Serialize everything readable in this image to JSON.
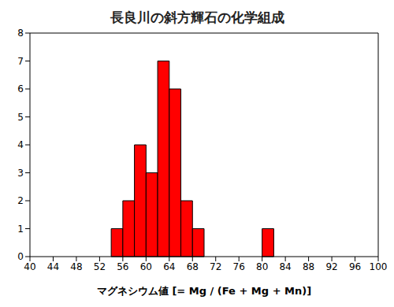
{
  "chart_data": {
    "type": "histogram",
    "title": "長良川の斜方輝石の化学組成",
    "x_label": "マグネシウム値 [= Mg / (Fe + Mg + Mn)]",
    "bins": [
      40,
      42,
      44,
      46,
      48,
      50,
      52,
      54,
      56,
      58,
      60,
      62,
      64,
      66,
      68,
      70,
      72,
      74,
      76,
      78,
      80,
      82,
      84,
      86,
      88,
      90,
      92,
      94,
      96,
      98,
      100
    ],
    "values": [
      0,
      0,
      0,
      0,
      0,
      0,
      0,
      1,
      2,
      4,
      3,
      7,
      6,
      2,
      1,
      0,
      0,
      0,
      0,
      0,
      1,
      0,
      0,
      0,
      0,
      0,
      0,
      0,
      0,
      0
    ],
    "color": "#ff0000",
    "xlim": [
      40,
      100
    ],
    "xticks": [
      40,
      44,
      48,
      52,
      56,
      60,
      64,
      68,
      72,
      76,
      80,
      84,
      88,
      92,
      96,
      100
    ],
    "ylim": [
      0,
      8
    ],
    "yticks": [
      0,
      1,
      2,
      3,
      4,
      5,
      6,
      7,
      8
    ],
    "grid": false
  }
}
